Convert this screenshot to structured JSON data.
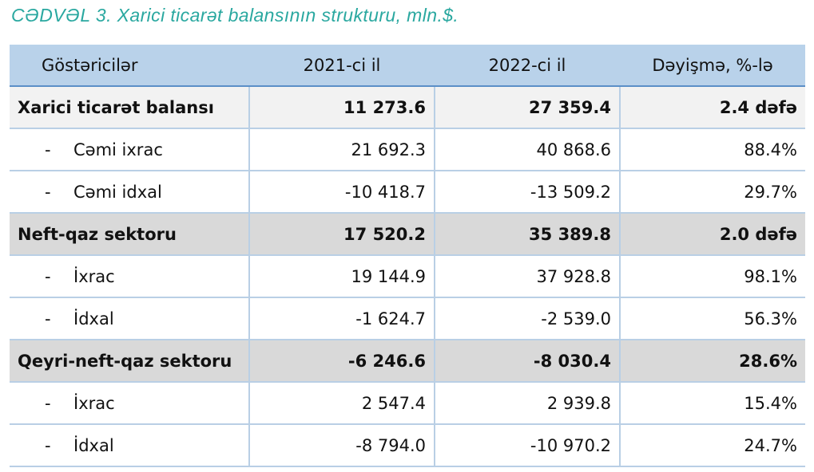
{
  "caption": "CƏDVƏL 3. Xarici ticarət balansının strukturu, mln.$.",
  "table": {
    "headers": [
      "Göstəricilər",
      "2021-ci il",
      "2022-ci il",
      "Dəyişmə, %-lə"
    ],
    "rows": [
      {
        "label": "Xarici ticarət balansı",
        "v2021": "11 273.6",
        "v2022": "27 359.4",
        "change": "2.4 dəfə"
      },
      {
        "dash": "-",
        "label": "Cəmi ixrac",
        "v2021": "21 692.3",
        "v2022": "40 868.6",
        "change": "88.4%"
      },
      {
        "dash": "-",
        "label": "Cəmi idxal",
        "v2021": "-10 418.7",
        "v2022": "-13 509.2",
        "change": "29.7%"
      },
      {
        "label": "Neft-qaz sektoru",
        "v2021": "17 520.2",
        "v2022": "35 389.8",
        "change": "2.0 dəfə"
      },
      {
        "dash": "-",
        "label": "İxrac",
        "v2021": "19 144.9",
        "v2022": "37 928.8",
        "change": "98.1%"
      },
      {
        "dash": "-",
        "label": "İdxal",
        "v2021": "-1 624.7",
        "v2022": "-2 539.0",
        "change": "56.3%"
      },
      {
        "label": "Qeyri-neft-qaz sektoru",
        "v2021": "-6 246.6",
        "v2022": "-8 030.4",
        "change": "28.6%"
      },
      {
        "dash": "-",
        "label": "İxrac",
        "v2021": "2 547.4",
        "v2022": "2 939.8",
        "change": "15.4%"
      },
      {
        "dash": "-",
        "label": "İdxal",
        "v2021": "-8 794.0",
        "v2022": "-10 970.2",
        "change": "24.7%"
      }
    ]
  }
}
